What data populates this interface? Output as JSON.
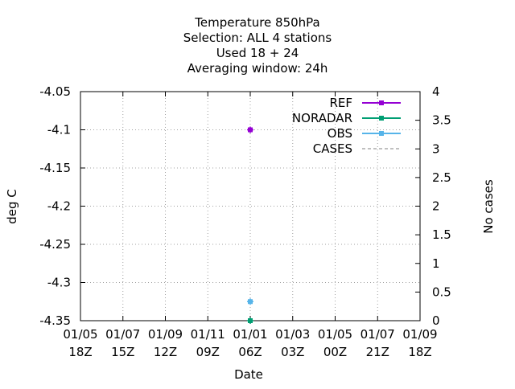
{
  "chart_data": {
    "type": "scatter",
    "title_lines": [
      "Temperature 850hPa",
      "Selection: ALL      4 stations",
      "Used  18 + 24",
      "Averaging window: 24h"
    ],
    "xlabel": "Date",
    "ylabel": "deg C",
    "y2label": "No cases",
    "ylim": [
      -4.35,
      -4.05
    ],
    "y2lim": [
      0,
      4
    ],
    "yticks": [
      "-4.05",
      "-4.1",
      "-4.15",
      "-4.2",
      "-4.25",
      "-4.3",
      "-4.35"
    ],
    "y2ticks": [
      "4",
      "3.5",
      "3",
      "2.5",
      "2",
      "1.5",
      "1",
      "0.5",
      "0"
    ],
    "xticks": [
      [
        "01/05",
        "18Z"
      ],
      [
        "01/07",
        "15Z"
      ],
      [
        "01/09",
        "12Z"
      ],
      [
        "01/11",
        "09Z"
      ],
      [
        "01/01",
        "06Z"
      ],
      [
        "01/03",
        "03Z"
      ],
      [
        "01/05",
        "00Z"
      ],
      [
        "01/07",
        "21Z"
      ],
      [
        "01/09",
        "18Z"
      ]
    ],
    "grid": true,
    "legend_position": "top-right",
    "series": [
      {
        "name": "REF",
        "color": "#9400d3",
        "axis": "y",
        "values": [
          {
            "x": "01/01 06Z",
            "y": -4.1
          }
        ]
      },
      {
        "name": "NORADAR",
        "color": "#009e73",
        "axis": "y",
        "values": [
          {
            "x": "01/01 06Z",
            "y": -4.35
          }
        ]
      },
      {
        "name": "OBS",
        "color": "#56b4e9",
        "axis": "y",
        "values": [
          {
            "x": "01/01 06Z",
            "y": -4.325
          }
        ]
      },
      {
        "name": "CASES",
        "color": "#808080",
        "axis": "y2",
        "dashed": true,
        "values": [
          {
            "x": "01/01 06Z",
            "y": 0
          }
        ]
      }
    ]
  }
}
